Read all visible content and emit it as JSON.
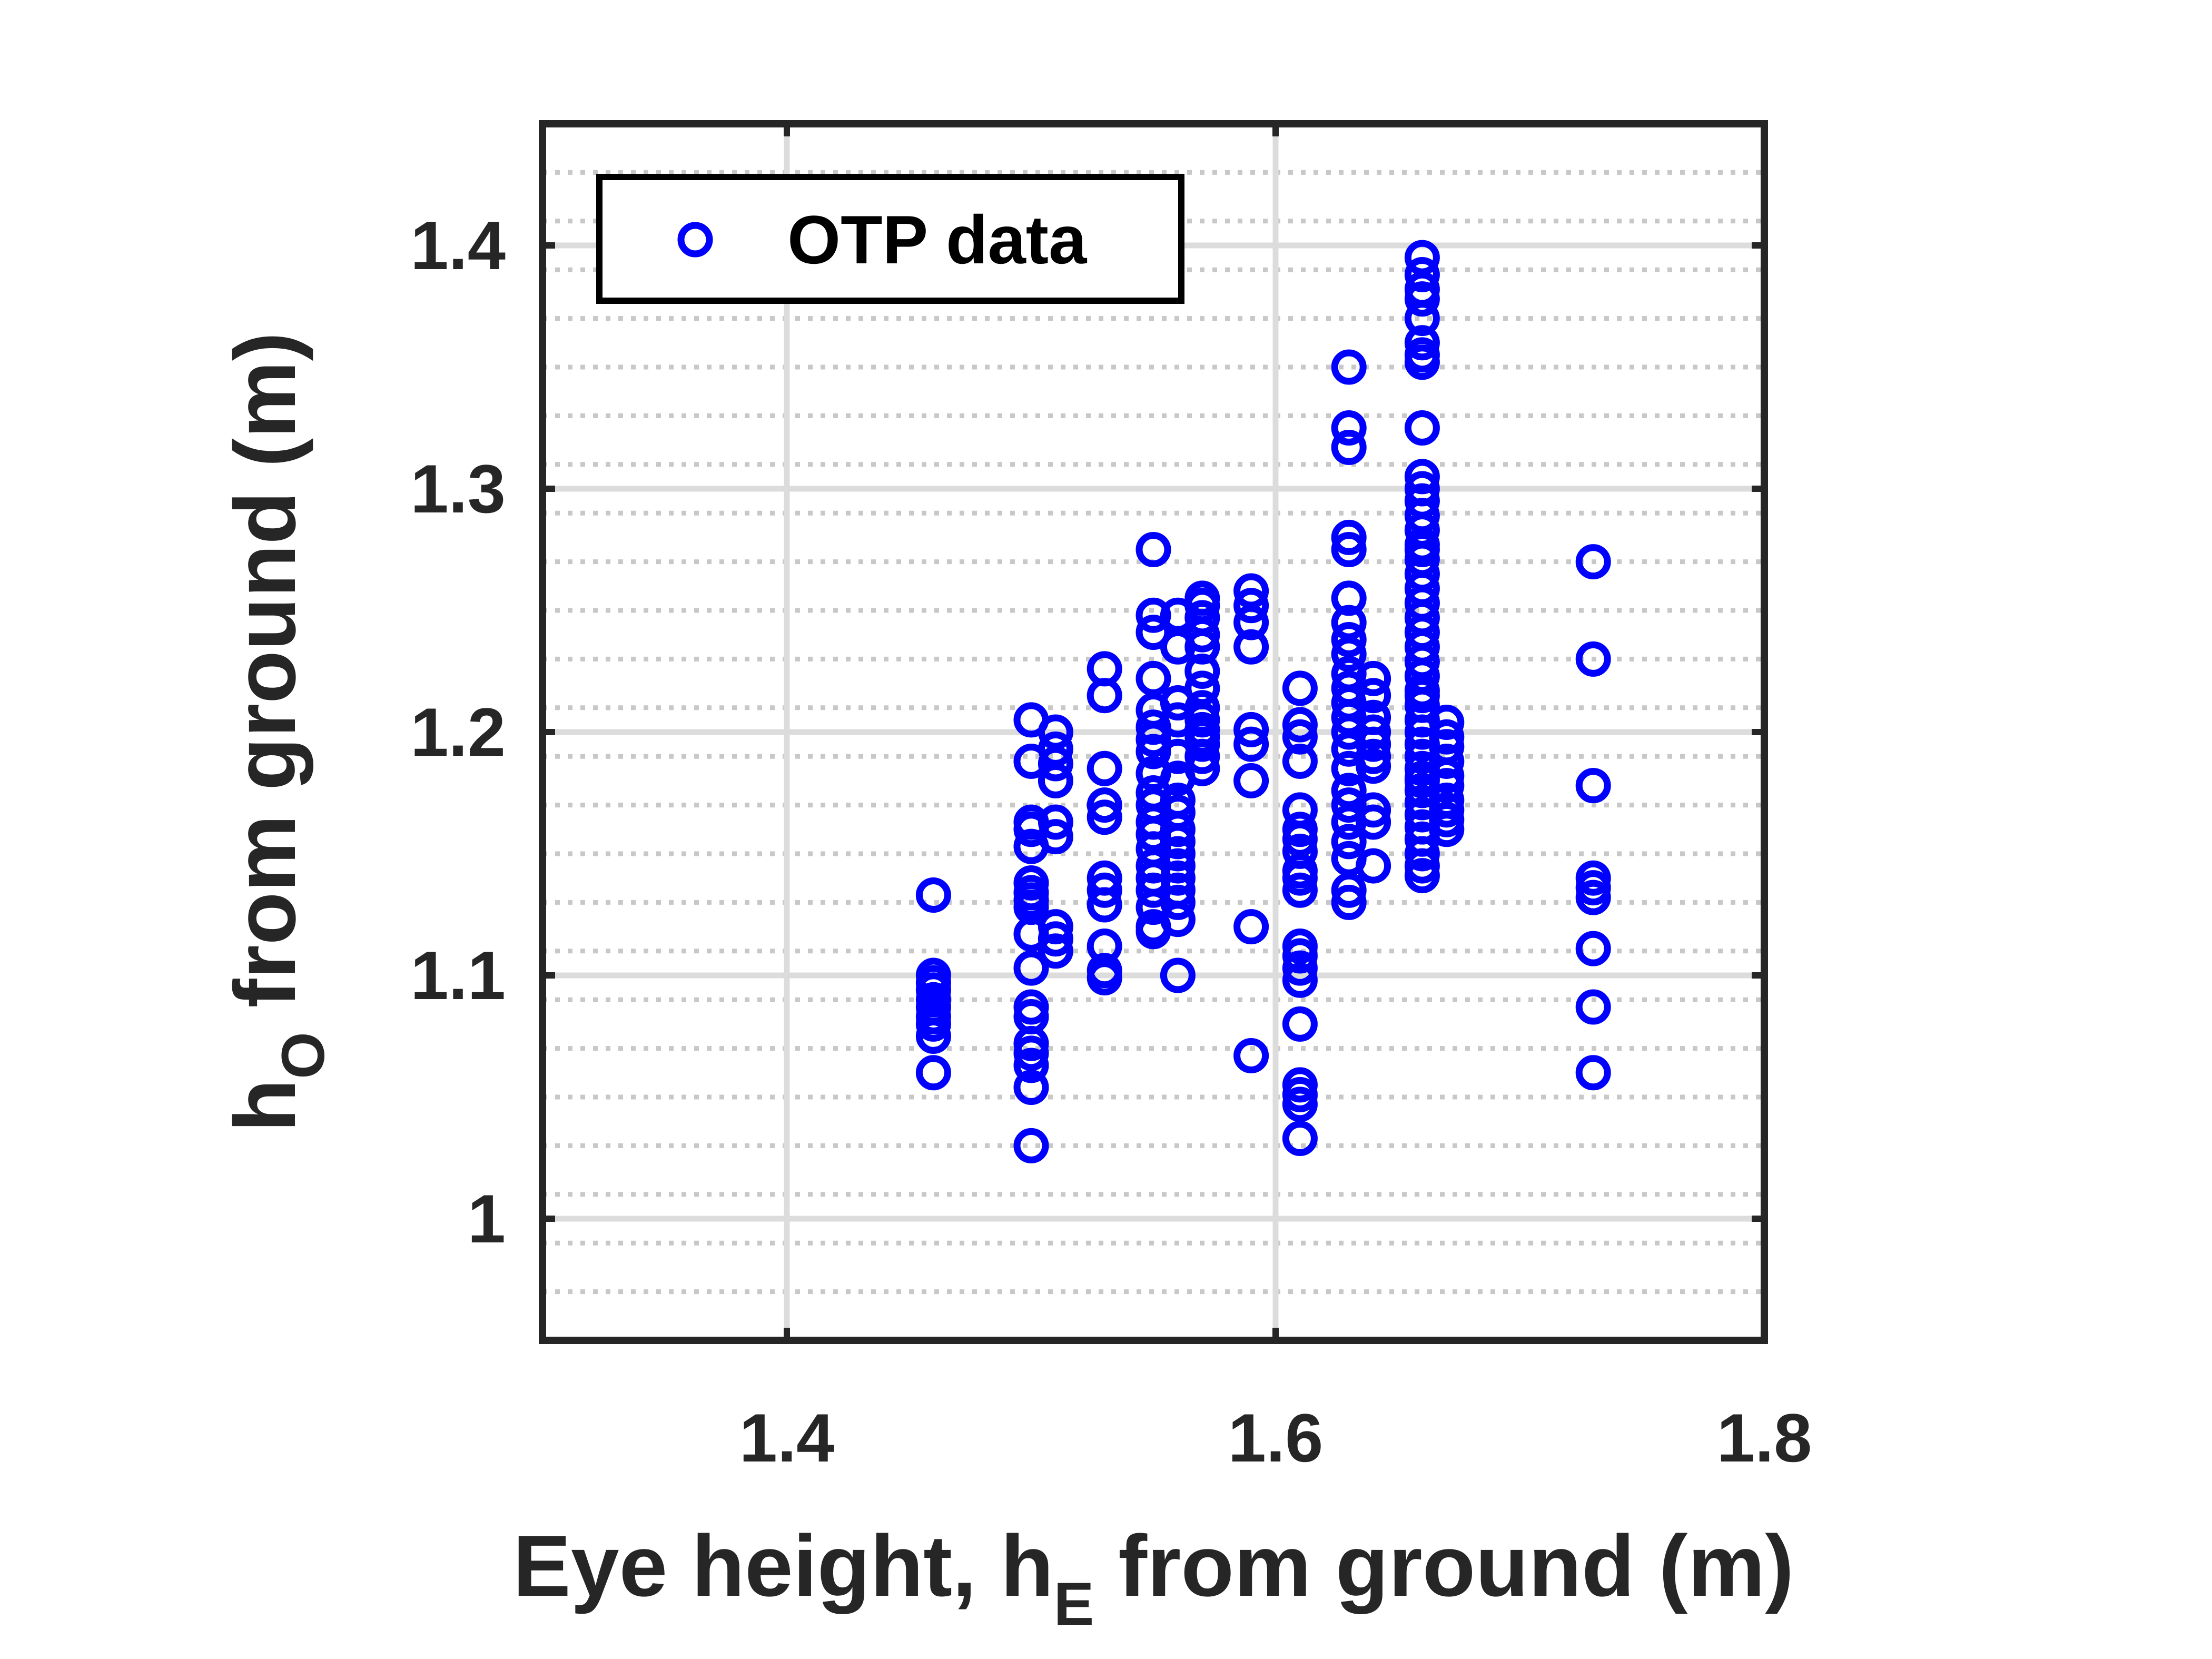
{
  "chart_data": {
    "type": "scatter",
    "title": "",
    "xlabel": {
      "main": "Eye height, h",
      "sub": "E",
      "tail": " from ground (m)"
    },
    "ylabel": {
      "main": "h",
      "sub": "O",
      "tail": " from ground (m)"
    },
    "xlim": [
      1.3,
      1.8
    ],
    "ylim": [
      0.95,
      1.45
    ],
    "xticks": [
      1.4,
      1.6,
      1.8
    ],
    "xtick_labels": [
      "1.4",
      "1.6",
      "1.8"
    ],
    "yticks": [
      1.0,
      1.1,
      1.2,
      1.3,
      1.4
    ],
    "ytick_labels": [
      "1",
      "1.1",
      "1.2",
      "1.3",
      "1.4"
    ],
    "grid": "major solid, minor dotted (y)",
    "legend": {
      "position": "top-left",
      "entries": [
        "OTP data"
      ]
    },
    "series": [
      {
        "name": "OTP data",
        "marker": "circle-open",
        "color": "#0000ff",
        "x": [
          1.46,
          1.46,
          1.46,
          1.46,
          1.46,
          1.46,
          1.46,
          1.46,
          1.46,
          1.46,
          1.5,
          1.5,
          1.5,
          1.5,
          1.5,
          1.5,
          1.5,
          1.5,
          1.5,
          1.5,
          1.5,
          1.5,
          1.5,
          1.5,
          1.5,
          1.5,
          1.5,
          1.5,
          1.51,
          1.51,
          1.51,
          1.51,
          1.51,
          1.51,
          1.51,
          1.51,
          1.51,
          1.53,
          1.53,
          1.53,
          1.53,
          1.53,
          1.53,
          1.53,
          1.53,
          1.53,
          1.53,
          1.53,
          1.55,
          1.55,
          1.55,
          1.55,
          1.55,
          1.55,
          1.55,
          1.55,
          1.55,
          1.55,
          1.55,
          1.55,
          1.55,
          1.55,
          1.55,
          1.55,
          1.55,
          1.55,
          1.55,
          1.55,
          1.56,
          1.56,
          1.56,
          1.56,
          1.56,
          1.56,
          1.56,
          1.56,
          1.56,
          1.56,
          1.56,
          1.56,
          1.56,
          1.56,
          1.56,
          1.56,
          1.56,
          1.57,
          1.57,
          1.57,
          1.57,
          1.57,
          1.57,
          1.57,
          1.57,
          1.57,
          1.57,
          1.57,
          1.57,
          1.57,
          1.57,
          1.59,
          1.59,
          1.59,
          1.59,
          1.59,
          1.59,
          1.59,
          1.59,
          1.59,
          1.61,
          1.61,
          1.61,
          1.61,
          1.61,
          1.61,
          1.61,
          1.61,
          1.61,
          1.61,
          1.61,
          1.61,
          1.61,
          1.61,
          1.61,
          1.61,
          1.61,
          1.61,
          1.61,
          1.61,
          1.63,
          1.63,
          1.63,
          1.63,
          1.63,
          1.63,
          1.63,
          1.63,
          1.63,
          1.63,
          1.63,
          1.63,
          1.63,
          1.63,
          1.63,
          1.63,
          1.63,
          1.63,
          1.63,
          1.63,
          1.63,
          1.63,
          1.63,
          1.64,
          1.64,
          1.64,
          1.64,
          1.64,
          1.64,
          1.64,
          1.64,
          1.64,
          1.64,
          1.66,
          1.66,
          1.66,
          1.66,
          1.66,
          1.66,
          1.66,
          1.66,
          1.66,
          1.66,
          1.66,
          1.66,
          1.66,
          1.66,
          1.66,
          1.66,
          1.66,
          1.66,
          1.66,
          1.66,
          1.66,
          1.66,
          1.66,
          1.66,
          1.66,
          1.66,
          1.66,
          1.66,
          1.66,
          1.66,
          1.66,
          1.66,
          1.66,
          1.66,
          1.66,
          1.66,
          1.66,
          1.66,
          1.66,
          1.66,
          1.66,
          1.66,
          1.66,
          1.67,
          1.67,
          1.67,
          1.67,
          1.67,
          1.67,
          1.67,
          1.67,
          1.67,
          1.67,
          1.73,
          1.73,
          1.73,
          1.73,
          1.73,
          1.73,
          1.73,
          1.73,
          1.73
        ],
        "y": [
          1.133,
          1.1,
          1.097,
          1.094,
          1.09,
          1.087,
          1.083,
          1.08,
          1.075,
          1.06,
          1.205,
          1.188,
          1.163,
          1.16,
          1.153,
          1.138,
          1.134,
          1.131,
          1.128,
          1.117,
          1.103,
          1.087,
          1.083,
          1.072,
          1.068,
          1.063,
          1.054,
          1.03,
          1.2,
          1.193,
          1.187,
          1.18,
          1.163,
          1.157,
          1.12,
          1.115,
          1.11,
          1.226,
          1.215,
          1.185,
          1.17,
          1.165,
          1.14,
          1.135,
          1.129,
          1.112,
          1.102,
          1.099,
          1.275,
          1.248,
          1.241,
          1.222,
          1.209,
          1.202,
          1.197,
          1.192,
          1.183,
          1.175,
          1.17,
          1.163,
          1.158,
          1.152,
          1.145,
          1.14,
          1.135,
          1.128,
          1.12,
          1.118,
          1.248,
          1.235,
          1.212,
          1.205,
          1.19,
          1.181,
          1.172,
          1.167,
          1.16,
          1.155,
          1.15,
          1.145,
          1.14,
          1.135,
          1.13,
          1.123,
          1.1,
          1.255,
          1.252,
          1.247,
          1.24,
          1.235,
          1.225,
          1.218,
          1.21,
          1.205,
          1.201,
          1.198,
          1.195,
          1.19,
          1.185,
          1.258,
          1.252,
          1.245,
          1.235,
          1.201,
          1.195,
          1.18,
          1.12,
          1.067,
          1.218,
          1.203,
          1.198,
          1.188,
          1.168,
          1.16,
          1.156,
          1.151,
          1.143,
          1.14,
          1.135,
          1.112,
          1.108,
          1.103,
          1.098,
          1.08,
          1.055,
          1.051,
          1.047,
          1.033,
          1.35,
          1.325,
          1.317,
          1.28,
          1.275,
          1.255,
          1.245,
          1.238,
          1.232,
          1.224,
          1.218,
          1.212,
          1.206,
          1.2,
          1.193,
          1.185,
          1.176,
          1.17,
          1.163,
          1.155,
          1.148,
          1.135,
          1.13,
          1.222,
          1.215,
          1.206,
          1.2,
          1.195,
          1.19,
          1.186,
          1.168,
          1.163,
          1.145,
          1.395,
          1.388,
          1.382,
          1.378,
          1.37,
          1.36,
          1.355,
          1.352,
          1.325,
          1.305,
          1.3,
          1.295,
          1.289,
          1.283,
          1.277,
          1.271,
          1.265,
          1.259,
          1.253,
          1.247,
          1.241,
          1.235,
          1.229,
          1.223,
          1.217,
          1.211,
          1.205,
          1.2,
          1.195,
          1.19,
          1.185,
          1.18,
          1.176,
          1.171,
          1.166,
          1.161,
          1.156,
          1.15,
          1.145,
          1.141,
          1.181,
          1.275,
          1.215,
          1.204,
          1.198,
          1.194,
          1.188,
          1.182,
          1.178,
          1.172,
          1.168,
          1.164,
          1.16,
          1.27,
          1.23,
          1.178,
          1.14,
          1.136,
          1.132,
          1.111,
          1.087,
          1.06
        ]
      }
    ]
  }
}
